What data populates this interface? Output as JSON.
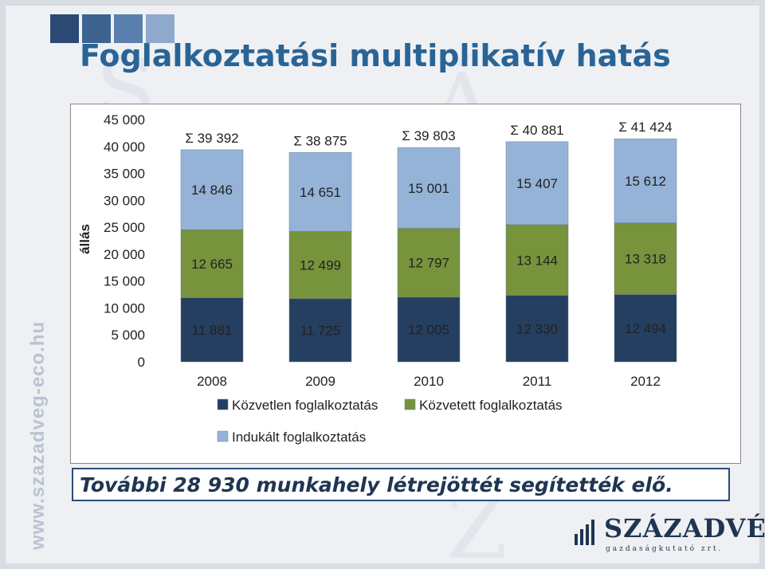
{
  "slide": {
    "title": "Foglalkoztatási multiplikatív hatás",
    "footer": "További 28 930 munkahely létrejöttét segítették elő.",
    "brand_name": "SZÁZADVÉG",
    "brand_sub": "gazdaságkutató zrt.",
    "side_url": "www.szazadveg-eco.hu",
    "colors": {
      "title": "#2a6496",
      "deco_squares": [
        "#2b4a73",
        "#3f6391",
        "#5b7fad",
        "#8ea9cc"
      ]
    }
  },
  "chart_data": {
    "type": "bar",
    "stacked": true,
    "categories": [
      "2008",
      "2009",
      "2010",
      "2011",
      "2012"
    ],
    "ylabel": "állás",
    "ylim": [
      0,
      45000
    ],
    "yticks": [
      "0",
      "5 000",
      "10 000",
      "15 000",
      "20 000",
      "25 000",
      "30 000",
      "35 000",
      "40 000",
      "45 000"
    ],
    "series": [
      {
        "name": "Közvetlen foglalkoztatás",
        "color": "#243f60",
        "values": [
          11881,
          11725,
          12005,
          12330,
          12494
        ],
        "labels": [
          "11 881",
          "11 725",
          "12 005",
          "12 330",
          "12 494"
        ]
      },
      {
        "name": "Közvetett foglalkoztatás",
        "color": "#77933c",
        "values": [
          12665,
          12499,
          12797,
          13144,
          13318
        ],
        "labels": [
          "12 665",
          "12 499",
          "12 797",
          "13 144",
          "13 318"
        ]
      },
      {
        "name": "Indukált foglalkoztatás",
        "color": "#95b3d7",
        "values": [
          14846,
          14651,
          15001,
          15407,
          15612
        ],
        "labels": [
          "14 846",
          "14 651",
          "15 001",
          "15 407",
          "15 612"
        ]
      }
    ],
    "totals": [
      39392,
      38875,
      39803,
      40881,
      41424
    ],
    "total_labels": [
      "Σ 39 392",
      "Σ 38 875",
      "Σ 39 803",
      "Σ 40 881",
      "Σ 41 424"
    ],
    "legend_position": "bottom",
    "grid": false
  }
}
